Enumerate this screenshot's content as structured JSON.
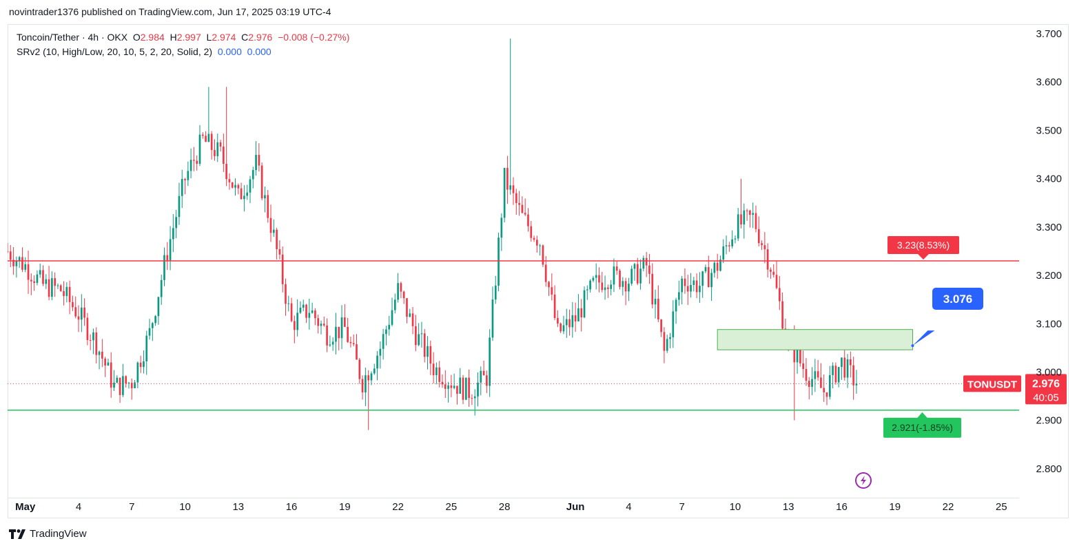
{
  "publisher": "novintrader1376 published on TradingView.com, Jun 17, 2025 03:19 UTC-4",
  "legend": {
    "symbol": "Toncoin/Tether · 4h · OKX",
    "o_label": "O",
    "o": "2.984",
    "h_label": "H",
    "h": "2.997",
    "l_label": "L",
    "l": "2.974",
    "c_label": "C",
    "c": "2.976",
    "change": "−0.008 (−0.27%)",
    "indicator": "SRv2 (10, High/Low, 20, 10, 5, 2, 20, Solid, 2)",
    "ind_v1": "0.000",
    "ind_v2": "0.000"
  },
  "brand": "TradingView",
  "colors": {
    "up": "#089981",
    "down": "#f23645",
    "resistance": "#f23645",
    "support": "#22c55e",
    "zone_fill": "#d9f0d6",
    "zone_border": "#4caf50",
    "callout": "#2962ff",
    "axis_text": "#131722",
    "bg": "#ffffff"
  },
  "chart_data": {
    "type": "candlestick",
    "symbol": "TONUSDT",
    "timeframe": "4h",
    "exchange": "OKX",
    "y_axis": {
      "ticks": [
        3.7,
        3.6,
        3.5,
        3.4,
        3.3,
        3.2,
        3.1,
        3.0,
        2.9,
        2.8
      ],
      "tick_labels": [
        "3.700",
        "3.600",
        "3.500",
        "3.400",
        "3.300",
        "3.200",
        "3.100",
        "3.000",
        "2.900",
        "2.800"
      ],
      "range": [
        2.74,
        3.72
      ]
    },
    "x_axis": {
      "range": [
        "2025-04-30",
        "2025-06-26"
      ],
      "ticks": [
        {
          "date": "2025-05-01",
          "label": "May",
          "bold": true
        },
        {
          "date": "2025-05-04",
          "label": "4"
        },
        {
          "date": "2025-05-07",
          "label": "7"
        },
        {
          "date": "2025-05-10",
          "label": "10"
        },
        {
          "date": "2025-05-13",
          "label": "13"
        },
        {
          "date": "2025-05-16",
          "label": "16"
        },
        {
          "date": "2025-05-19",
          "label": "19"
        },
        {
          "date": "2025-05-22",
          "label": "22"
        },
        {
          "date": "2025-05-25",
          "label": "25"
        },
        {
          "date": "2025-05-28",
          "label": "28"
        },
        {
          "date": "2025-06-01",
          "label": "Jun",
          "bold": true
        },
        {
          "date": "2025-06-04",
          "label": "4"
        },
        {
          "date": "2025-06-07",
          "label": "7"
        },
        {
          "date": "2025-06-10",
          "label": "10"
        },
        {
          "date": "2025-06-13",
          "label": "13"
        },
        {
          "date": "2025-06-16",
          "label": "16"
        },
        {
          "date": "2025-06-19",
          "label": "19"
        },
        {
          "date": "2025-06-22",
          "label": "22"
        },
        {
          "date": "2025-06-25",
          "label": "25"
        }
      ]
    },
    "price_path": [
      [
        "2025-04-30",
        3.25
      ],
      [
        "2025-05-01",
        3.22
      ],
      [
        "2025-05-02",
        3.18
      ],
      [
        "2025-05-03",
        3.17
      ],
      [
        "2025-05-04",
        3.12
      ],
      [
        "2025-05-05",
        3.06
      ],
      [
        "2025-05-06",
        2.97
      ],
      [
        "2025-05-07",
        2.98
      ],
      [
        "2025-05-08",
        3.08
      ],
      [
        "2025-05-09",
        3.25
      ],
      [
        "2025-05-10",
        3.4
      ],
      [
        "2025-05-11",
        3.48
      ],
      [
        "2025-05-12",
        3.45
      ],
      [
        "2025-05-13",
        3.36
      ],
      [
        "2025-05-14",
        3.43
      ],
      [
        "2025-05-15",
        3.28
      ],
      [
        "2025-05-16",
        3.1
      ],
      [
        "2025-05-17",
        3.13
      ],
      [
        "2025-05-18",
        3.08
      ],
      [
        "2025-05-19",
        3.09
      ],
      [
        "2025-05-20",
        2.98
      ],
      [
        "2025-05-21",
        3.05
      ],
      [
        "2025-05-22",
        3.17
      ],
      [
        "2025-05-23",
        3.08
      ],
      [
        "2025-05-24",
        3.01
      ],
      [
        "2025-05-25",
        2.98
      ],
      [
        "2025-05-26",
        2.96
      ],
      [
        "2025-05-27",
        2.99
      ],
      [
        "2025-05-28",
        3.4
      ],
      [
        "2025-05-29",
        3.32
      ],
      [
        "2025-05-30",
        3.27
      ],
      [
        "2025-05-31",
        3.08
      ],
      [
        "2025-06-01",
        3.11
      ],
      [
        "2025-06-02",
        3.18
      ],
      [
        "2025-06-03",
        3.2
      ],
      [
        "2025-06-04",
        3.19
      ],
      [
        "2025-06-05",
        3.22
      ],
      [
        "2025-06-06",
        3.04
      ],
      [
        "2025-06-07",
        3.19
      ],
      [
        "2025-06-08",
        3.18
      ],
      [
        "2025-06-09",
        3.22
      ],
      [
        "2025-06-10",
        3.3
      ],
      [
        "2025-06-11",
        3.32
      ],
      [
        "2025-06-12",
        3.22
      ],
      [
        "2025-06-13",
        3.06
      ],
      [
        "2025-06-14",
        3.0
      ],
      [
        "2025-06-15",
        2.96
      ],
      [
        "2025-06-16",
        3.02
      ],
      [
        "2025-06-16T20:00",
        2.976
      ]
    ],
    "spike_highs": [
      {
        "date": "2025-05-11",
        "high": 3.59
      },
      {
        "date": "2025-05-12",
        "high": 3.59
      },
      {
        "date": "2025-05-28",
        "high": 3.69
      },
      {
        "date": "2025-06-10",
        "high": 3.4
      }
    ],
    "spike_lows": [
      {
        "date": "2025-05-20",
        "low": 2.88
      },
      {
        "date": "2025-06-13",
        "low": 2.9
      },
      {
        "date": "2025-05-26",
        "low": 2.91
      }
    ],
    "resistance_line": 3.23,
    "support_line": 2.921,
    "zone": {
      "from": "2025-06-09",
      "to": "2025-06-20",
      "top": 3.088,
      "bottom": 3.046
    },
    "target_point": {
      "date": "2025-06-20",
      "price": 3.076
    },
    "labels": {
      "resistance": "3.23(8.53%)",
      "support": "2.921(-1.85%)",
      "target": "3.076",
      "symbol_tag": "TONUSDT",
      "last_price": "2.976",
      "countdown": "40:05"
    },
    "last_price": 2.976
  }
}
